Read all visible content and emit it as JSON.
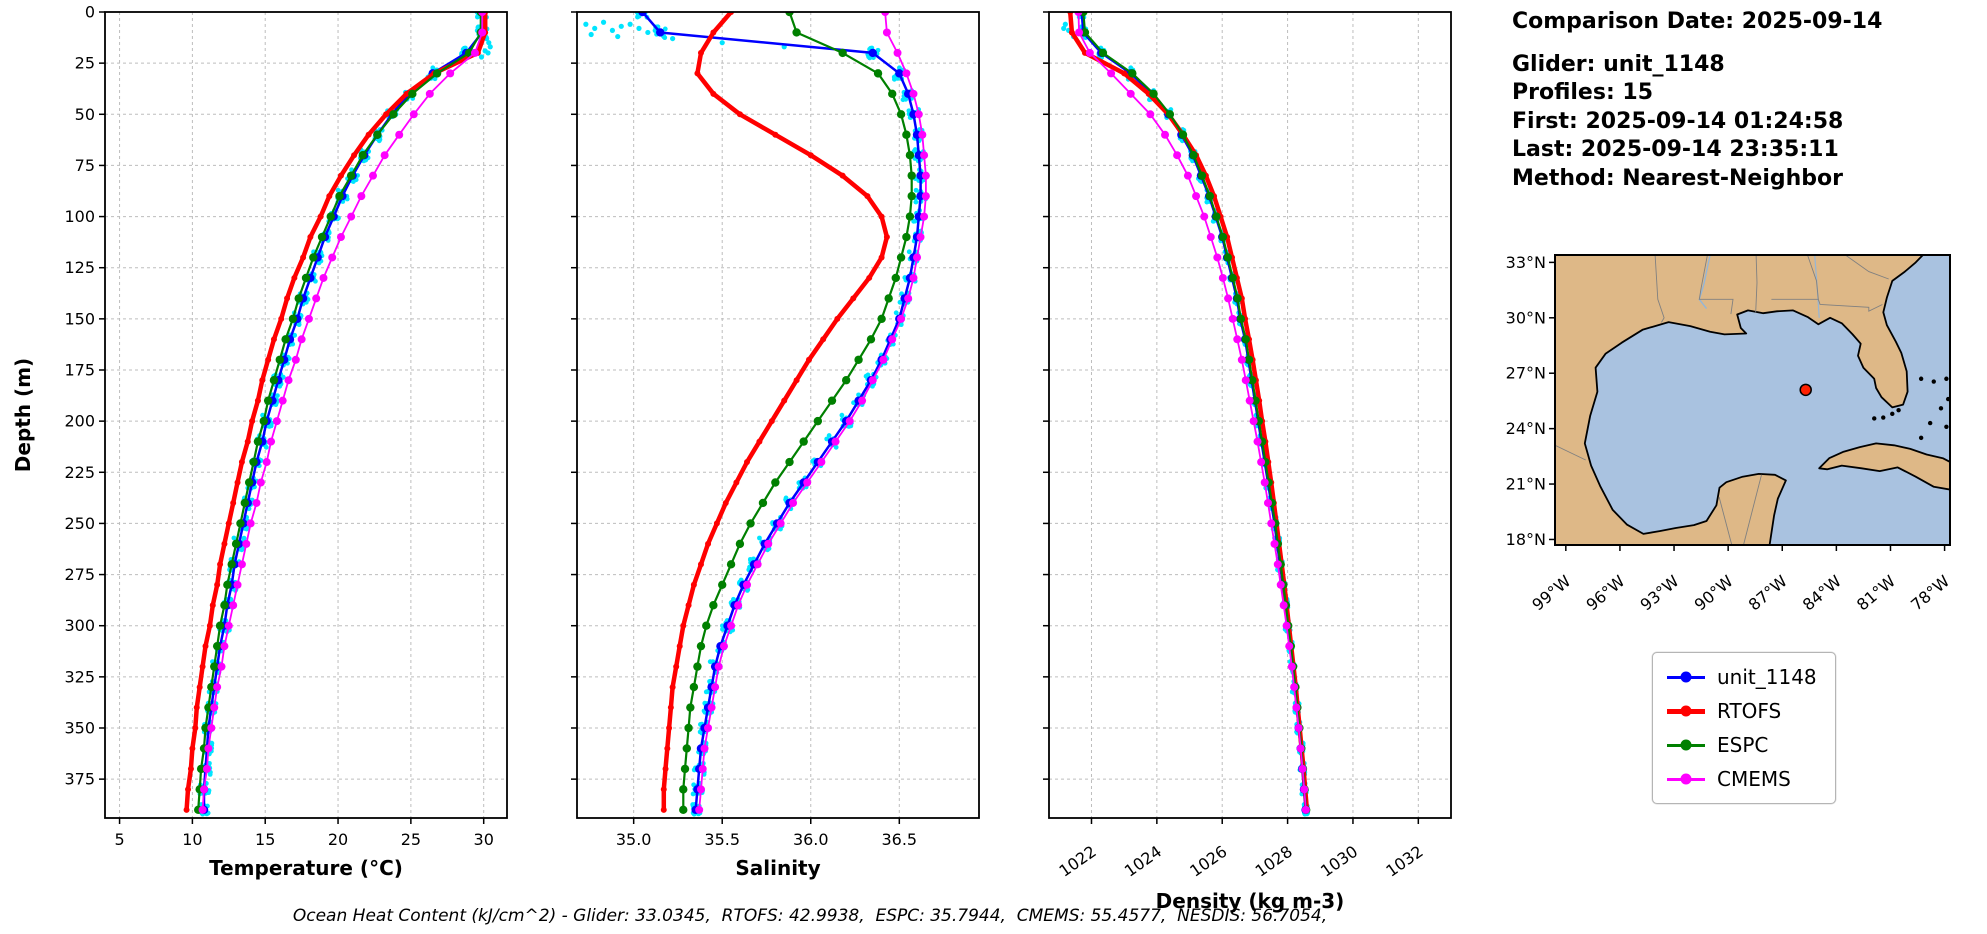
{
  "info": {
    "comparison_date": "Comparison Date: 2025-09-14",
    "glider": "Glider: unit_1148",
    "profiles": "Profiles: 15",
    "first": "First: 2025-09-14 01:24:58",
    "last": "Last: 2025-09-14 23:35:11",
    "method": "Method: Nearest-Neighbor"
  },
  "footnote": {
    "text": "Ocean Heat Content (kJ/cm^2) - Glider: 33.0345,  RTOFS: 42.9938,  ESPC: 35.7944,  CMEMS: 55.4577,  NESDIS: 56.7054,"
  },
  "axes": {
    "depth_label": "Depth (m)"
  },
  "legend": {
    "items": [
      {
        "label": "unit_1148",
        "color": "#0000ff",
        "lw": 3
      },
      {
        "label": "RTOFS",
        "color": "#ff0000",
        "lw": 5
      },
      {
        "label": "ESPC",
        "color": "#008000",
        "lw": 3
      },
      {
        "label": "CMEMS",
        "color": "#ff00ff",
        "lw": 3
      }
    ]
  },
  "map": {
    "extent": {
      "lon": [
        -99.6,
        -77.7
      ],
      "lat": [
        17.7,
        33.4
      ]
    },
    "lat_ticks": [
      {
        "value": 33,
        "label": "33°N"
      },
      {
        "value": 30,
        "label": "30°N"
      },
      {
        "value": 27,
        "label": "27°N"
      },
      {
        "value": 24,
        "label": "24°N"
      },
      {
        "value": 21,
        "label": "21°N"
      },
      {
        "value": 18,
        "label": "18°N"
      }
    ],
    "lon_ticks": [
      {
        "value": -99,
        "label": "99°W"
      },
      {
        "value": -96,
        "label": "96°W"
      },
      {
        "value": -93,
        "label": "93°W"
      },
      {
        "value": -90,
        "label": "90°W"
      },
      {
        "value": -87,
        "label": "87°W"
      },
      {
        "value": -84,
        "label": "84°W"
      },
      {
        "value": -81,
        "label": "81°W"
      },
      {
        "value": -78,
        "label": "78°W"
      }
    ],
    "glider_position": {
      "lon": -85.7,
      "lat": 26.1
    },
    "land_color": "#deb887",
    "water_color": "#a9c2e0",
    "marker_color": "#ff2000",
    "coast_color": "#000000",
    "border_color": "#808080",
    "river_color": "#94b6d8"
  },
  "chart_data": {
    "type": "line",
    "orientation": "vertical-profile",
    "raw_profile_count": 15,
    "depth_axis": {
      "label": "Depth (m)",
      "ticks": [
        0,
        25,
        50,
        75,
        100,
        125,
        150,
        175,
        200,
        225,
        250,
        275,
        300,
        325,
        350,
        375
      ],
      "range": [
        0,
        394
      ]
    },
    "depths_m": [
      0,
      10,
      20,
      30,
      40,
      50,
      60,
      70,
      80,
      90,
      100,
      110,
      120,
      130,
      140,
      150,
      160,
      170,
      180,
      190,
      200,
      210,
      220,
      230,
      240,
      250,
      260,
      270,
      280,
      290,
      300,
      310,
      320,
      330,
      340,
      350,
      360,
      370,
      380,
      390
    ],
    "panels": [
      {
        "key": "temperature",
        "xlabel": "Temperature (°C)",
        "xlim": [
          4.0,
          31.6
        ],
        "xticks": [
          5,
          10,
          15,
          20,
          25,
          30
        ],
        "tick_decimals": 0,
        "rotate_ticks": false,
        "series": [
          {
            "name": "unit_1148",
            "color": "#0000ff",
            "lw": 2.5,
            "ms": 4.2,
            "values": [
              29.9,
              29.9,
              28.8,
              26.5,
              24.9,
              23.7,
              22.7,
              21.8,
              21.0,
              20.3,
              19.7,
              19.1,
              18.6,
              18.1,
              17.6,
              17.2,
              16.7,
              16.3,
              15.9,
              15.5,
              15.1,
              14.8,
              14.4,
              14.1,
              13.8,
              13.5,
              13.2,
              12.9,
              12.7,
              12.4,
              12.2,
              11.9,
              11.7,
              11.5,
              11.3,
              11.1,
              11.0,
              10.9,
              10.8,
              10.8
            ]
          },
          {
            "name": "RTOFS",
            "color": "#ff0000",
            "lw": 4.5,
            "ms": 3.0,
            "values": [
              30.1,
              30.1,
              29.6,
              26.6,
              24.7,
              23.3,
              22.1,
              21.1,
              20.2,
              19.4,
              18.8,
              18.1,
              17.6,
              17.0,
              16.5,
              16.1,
              15.6,
              15.2,
              14.8,
              14.5,
              14.1,
              13.8,
              13.4,
              13.1,
              12.8,
              12.5,
              12.2,
              11.9,
              11.7,
              11.4,
              11.2,
              10.9,
              10.7,
              10.5,
              10.3,
              10.2,
              10.0,
              9.9,
              9.7,
              9.6
            ]
          },
          {
            "name": "ESPC",
            "color": "#008000",
            "lw": 2.2,
            "ms": 4.2,
            "values": [
              29.8,
              29.8,
              29.0,
              26.8,
              25.1,
              23.8,
              22.7,
              21.7,
              20.9,
              20.1,
              19.5,
              18.9,
              18.3,
              17.8,
              17.3,
              16.9,
              16.4,
              16.0,
              15.6,
              15.2,
              14.9,
              14.5,
              14.2,
              13.9,
              13.6,
              13.3,
              13.0,
              12.7,
              12.4,
              12.2,
              11.9,
              11.7,
              11.5,
              11.3,
              11.1,
              10.9,
              10.8,
              10.6,
              10.5,
              10.4
            ]
          },
          {
            "name": "CMEMS",
            "color": "#ff00ff",
            "lw": 1.8,
            "ms": 4.0,
            "values": [
              29.9,
              29.9,
              29.4,
              27.7,
              26.3,
              25.2,
              24.2,
              23.2,
              22.4,
              21.6,
              20.9,
              20.2,
              19.6,
              19.0,
              18.5,
              18.0,
              17.5,
              17.1,
              16.6,
              16.2,
              15.8,
              15.4,
              15.1,
              14.7,
              14.4,
              14.0,
              13.7,
              13.4,
              13.1,
              12.8,
              12.5,
              12.2,
              12.0,
              11.7,
              11.5,
              11.3,
              11.1,
              11.0,
              10.8,
              10.7
            ]
          }
        ],
        "raw_scatter": {
          "color": "#00e5ff",
          "jitter": 0.35,
          "extra": [
            [
              30.2,
              13
            ],
            [
              30.35,
              15
            ],
            [
              30.45,
              17
            ],
            [
              30.1,
              19
            ],
            [
              29.85,
              22
            ],
            [
              30.3,
              20
            ]
          ]
        }
      },
      {
        "key": "salinity",
        "xlabel": "Salinity",
        "xlim": [
          34.68,
          36.95
        ],
        "xticks": [
          35.0,
          35.5,
          36.0,
          36.5
        ],
        "tick_decimals": 1,
        "rotate_ticks": false,
        "series": [
          {
            "name": "unit_1148",
            "color": "#0000ff",
            "lw": 2.5,
            "ms": 4.2,
            "values": [
              35.05,
              35.15,
              36.35,
              36.5,
              36.55,
              36.58,
              36.6,
              36.61,
              36.62,
              36.62,
              36.61,
              36.6,
              36.58,
              36.56,
              36.53,
              36.5,
              36.45,
              36.4,
              36.34,
              36.27,
              36.2,
              36.12,
              36.04,
              35.96,
              35.88,
              35.81,
              35.74,
              35.68,
              35.62,
              35.57,
              35.53,
              35.49,
              35.46,
              35.44,
              35.42,
              35.4,
              35.38,
              35.37,
              35.36,
              35.35
            ]
          },
          {
            "name": "RTOFS",
            "color": "#ff0000",
            "lw": 4.5,
            "ms": 3.0,
            "values": [
              35.55,
              35.45,
              35.38,
              35.36,
              35.45,
              35.6,
              35.8,
              36.0,
              36.18,
              36.32,
              36.4,
              36.43,
              36.4,
              36.33,
              36.24,
              36.15,
              36.07,
              35.99,
              35.92,
              35.85,
              35.78,
              35.71,
              35.64,
              35.58,
              35.52,
              35.47,
              35.42,
              35.38,
              35.34,
              35.31,
              35.28,
              35.26,
              35.24,
              35.22,
              35.21,
              35.2,
              35.19,
              35.18,
              35.17,
              35.17
            ]
          },
          {
            "name": "ESPC",
            "color": "#008000",
            "lw": 2.2,
            "ms": 4.2,
            "values": [
              35.88,
              35.92,
              36.18,
              36.38,
              36.46,
              36.51,
              36.54,
              36.56,
              36.57,
              36.57,
              36.56,
              36.54,
              36.51,
              36.48,
              36.44,
              36.4,
              36.34,
              36.27,
              36.2,
              36.12,
              36.04,
              35.96,
              35.88,
              35.8,
              35.73,
              35.66,
              35.6,
              35.55,
              35.5,
              35.45,
              35.41,
              35.38,
              35.36,
              35.34,
              35.32,
              35.31,
              35.3,
              35.29,
              35.28,
              35.28
            ]
          },
          {
            "name": "CMEMS",
            "color": "#ff00ff",
            "lw": 1.8,
            "ms": 4.0,
            "values": [
              36.42,
              36.43,
              36.49,
              36.54,
              36.58,
              36.61,
              36.63,
              36.64,
              36.65,
              36.65,
              36.64,
              36.62,
              36.6,
              36.58,
              36.55,
              36.51,
              36.46,
              36.41,
              36.35,
              36.29,
              36.22,
              36.14,
              36.06,
              35.98,
              35.9,
              35.83,
              35.76,
              35.7,
              35.64,
              35.59,
              35.55,
              35.51,
              35.48,
              35.46,
              35.44,
              35.42,
              35.4,
              35.39,
              35.38,
              35.37
            ]
          }
        ],
        "raw_scatter": {
          "color": "#00e5ff",
          "jitter": 0.03,
          "extra": [
            [
              34.73,
              6
            ],
            [
              34.78,
              8
            ],
            [
              34.83,
              5
            ],
            [
              34.88,
              9
            ],
            [
              34.93,
              7
            ],
            [
              34.98,
              6
            ],
            [
              35.03,
              8
            ],
            [
              35.08,
              10
            ],
            [
              34.76,
              11
            ],
            [
              34.91,
              12
            ],
            [
              35.13,
              9
            ],
            [
              35.22,
              13
            ],
            [
              35.5,
              15
            ],
            [
              35.85,
              17
            ]
          ]
        }
      },
      {
        "key": "density",
        "xlabel": "Density (kg m-3)",
        "xlim": [
          1020.7,
          1033.0
        ],
        "xticks": [
          1022,
          1024,
          1026,
          1028,
          1030,
          1032
        ],
        "tick_decimals": 0,
        "rotate_ticks": true,
        "series": [
          {
            "name": "unit_1148",
            "color": "#0000ff",
            "lw": 2.5,
            "ms": 4.2,
            "values": [
              1021.7,
              1021.75,
              1022.3,
              1023.2,
              1023.85,
              1024.35,
              1024.75,
              1025.1,
              1025.35,
              1025.6,
              1025.8,
              1026.0,
              1026.15,
              1026.3,
              1026.45,
              1026.55,
              1026.7,
              1026.8,
              1026.9,
              1027.0,
              1027.1,
              1027.2,
              1027.3,
              1027.4,
              1027.5,
              1027.6,
              1027.68,
              1027.77,
              1027.85,
              1027.93,
              1028.0,
              1028.08,
              1028.15,
              1028.22,
              1028.28,
              1028.34,
              1028.4,
              1028.45,
              1028.5,
              1028.55
            ]
          },
          {
            "name": "RTOFS",
            "color": "#ff0000",
            "lw": 4.5,
            "ms": 3.0,
            "values": [
              1021.35,
              1021.4,
              1021.8,
              1023.0,
              1023.75,
              1024.35,
              1024.8,
              1025.2,
              1025.5,
              1025.75,
              1025.95,
              1026.15,
              1026.3,
              1026.45,
              1026.6,
              1026.7,
              1026.82,
              1026.93,
              1027.03,
              1027.13,
              1027.22,
              1027.32,
              1027.41,
              1027.5,
              1027.58,
              1027.66,
              1027.74,
              1027.82,
              1027.9,
              1027.97,
              1028.04,
              1028.11,
              1028.18,
              1028.25,
              1028.31,
              1028.37,
              1028.43,
              1028.49,
              1028.54,
              1028.59
            ]
          },
          {
            "name": "ESPC",
            "color": "#008000",
            "lw": 2.2,
            "ms": 4.2,
            "values": [
              1021.75,
              1021.8,
              1022.35,
              1023.25,
              1023.9,
              1024.4,
              1024.8,
              1025.12,
              1025.38,
              1025.62,
              1025.82,
              1026.02,
              1026.17,
              1026.32,
              1026.47,
              1026.57,
              1026.72,
              1026.82,
              1026.92,
              1027.02,
              1027.12,
              1027.22,
              1027.32,
              1027.42,
              1027.52,
              1027.62,
              1027.7,
              1027.79,
              1027.87,
              1027.95,
              1028.02,
              1028.1,
              1028.17,
              1028.24,
              1028.3,
              1028.36,
              1028.42,
              1028.47,
              1028.52,
              1028.57
            ]
          },
          {
            "name": "CMEMS",
            "color": "#ff00ff",
            "lw": 1.8,
            "ms": 4.0,
            "values": [
              1021.6,
              1021.62,
              1021.95,
              1022.6,
              1023.2,
              1023.8,
              1024.25,
              1024.62,
              1024.95,
              1025.2,
              1025.45,
              1025.65,
              1025.85,
              1026.02,
              1026.18,
              1026.32,
              1026.46,
              1026.6,
              1026.72,
              1026.84,
              1026.96,
              1027.08,
              1027.19,
              1027.3,
              1027.4,
              1027.5,
              1027.6,
              1027.7,
              1027.79,
              1027.88,
              1027.97,
              1028.05,
              1028.13,
              1028.2,
              1028.27,
              1028.34,
              1028.4,
              1028.46,
              1028.51,
              1028.56
            ]
          }
        ],
        "raw_scatter": {
          "color": "#00e5ff",
          "jitter": 0.08,
          "extra": [
            [
              1021.2,
              6
            ],
            [
              1021.3,
              9
            ],
            [
              1021.45,
              12
            ],
            [
              1021.15,
              8
            ]
          ]
        }
      }
    ]
  }
}
